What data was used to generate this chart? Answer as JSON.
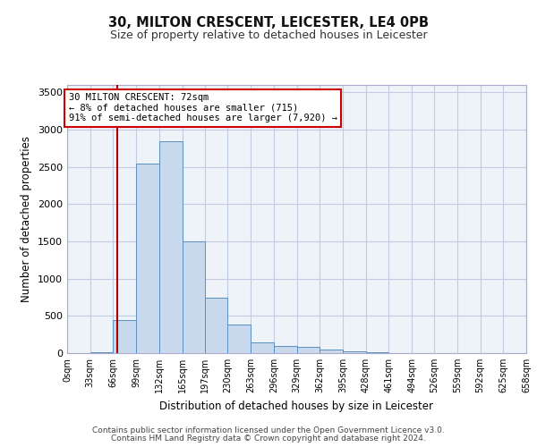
{
  "title1": "30, MILTON CRESCENT, LEICESTER, LE4 0PB",
  "title2": "Size of property relative to detached houses in Leicester",
  "xlabel": "Distribution of detached houses by size in Leicester",
  "ylabel": "Number of detached properties",
  "footer1": "Contains HM Land Registry data © Crown copyright and database right 2024.",
  "footer2": "Contains public sector information licensed under the Open Government Licence v3.0.",
  "annotation_line1": "30 MILTON CRESCENT: 72sqm",
  "annotation_line2": "← 8% of detached houses are smaller (715)",
  "annotation_line3": "91% of semi-detached houses are larger (7,920) →",
  "property_size": 72,
  "bar_color": "#c8d9ee",
  "bar_edge_color": "#5a8fc0",
  "red_line_color": "#aa0000",
  "background_color": "#eef2f9",
  "grid_color": "#c0cce0",
  "bin_edges": [
    0,
    33,
    66,
    99,
    132,
    165,
    197,
    230,
    263,
    296,
    329,
    362,
    395,
    428,
    461,
    494,
    526,
    559,
    592,
    625,
    658
  ],
  "bin_counts": [
    5,
    12,
    450,
    2550,
    2850,
    1500,
    750,
    390,
    150,
    100,
    80,
    50,
    30,
    15,
    5,
    3,
    2,
    1,
    1,
    0
  ],
  "ylim": [
    0,
    3600
  ],
  "yticks": [
    0,
    500,
    1000,
    1500,
    2000,
    2500,
    3000,
    3500
  ],
  "tick_labels": [
    "0sqm",
    "33sqm",
    "66sqm",
    "99sqm",
    "132sqm",
    "165sqm",
    "197sqm",
    "230sqm",
    "263sqm",
    "296sqm",
    "329sqm",
    "362sqm",
    "395sqm",
    "428sqm",
    "461sqm",
    "494sqm",
    "526sqm",
    "559sqm",
    "592sqm",
    "625sqm",
    "658sqm"
  ]
}
